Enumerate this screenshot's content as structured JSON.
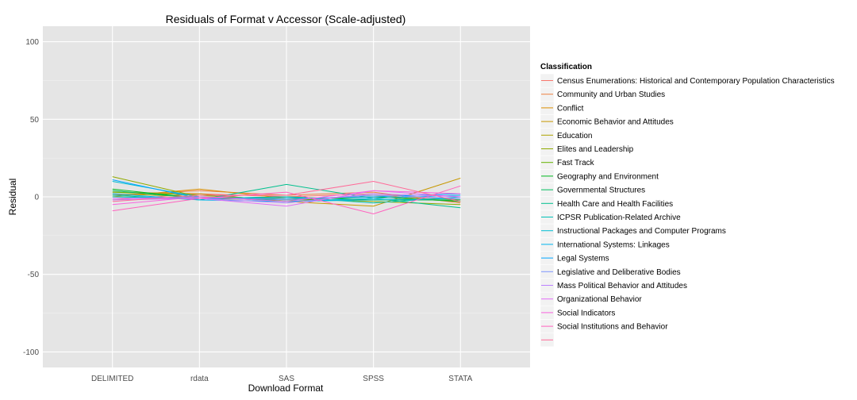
{
  "chart_data": {
    "type": "line",
    "title": "Residuals of Format v Accessor (Scale-adjusted)",
    "xlabel": "Download Format",
    "ylabel": "Residual",
    "categories": [
      "DELIMITED",
      "rdata",
      "SAS",
      "SPSS",
      "STATA"
    ],
    "ylim": [
      -110,
      110
    ],
    "yticks": [
      100,
      50,
      0,
      -50,
      -100
    ],
    "grid": true,
    "legend_title": "Classification",
    "legend_position": "right",
    "series": [
      {
        "name": "Census Enumerations: Historical and Contemporary Population Characteristics",
        "color": "#F8766D",
        "values": [
          -2,
          2,
          0,
          2,
          -2
        ]
      },
      {
        "name": "Community and Urban Studies",
        "color": "#EE8042",
        "values": [
          1,
          4,
          1,
          3,
          -4
        ]
      },
      {
        "name": "Conflict",
        "color": "#DB8E00",
        "values": [
          0,
          5,
          -1,
          0,
          -3
        ]
      },
      {
        "name": "Economic Behavior and Attitudes",
        "color": "#C79800",
        "values": [
          3,
          2,
          -3,
          -6,
          12
        ]
      },
      {
        "name": "Education",
        "color": "#AEA200",
        "values": [
          2,
          0,
          -2,
          1,
          -3
        ]
      },
      {
        "name": "Elites and Leadership",
        "color": "#8FAA00",
        "values": [
          13,
          0,
          -1,
          -3,
          -5
        ]
      },
      {
        "name": "Fast Track",
        "color": "#64B200",
        "values": [
          3,
          1,
          -2,
          -2,
          -2
        ]
      },
      {
        "name": "Geography and Environment",
        "color": "#00B81F",
        "values": [
          5,
          -1,
          -2,
          0,
          -3
        ]
      },
      {
        "name": "Governmental Structures",
        "color": "#00BD5C",
        "values": [
          4,
          -1,
          0,
          -2,
          -2
        ]
      },
      {
        "name": "Health Care and Health Facilities",
        "color": "#00C08E",
        "values": [
          1,
          -2,
          8,
          -1,
          -7
        ]
      },
      {
        "name": "ICPSR Publication-Related Archive",
        "color": "#00C1B7",
        "values": [
          0,
          -1,
          0,
          -4,
          0
        ]
      },
      {
        "name": "Instructional Packages and Computer Programs",
        "color": "#00BDD4",
        "values": [
          10,
          0,
          -3,
          -2,
          -1
        ]
      },
      {
        "name": "International Systems: Linkages",
        "color": "#00B5EE",
        "values": [
          2,
          -2,
          -3,
          -1,
          1
        ]
      },
      {
        "name": "Legal Systems",
        "color": "#00A7FF",
        "values": [
          11,
          -1,
          -1,
          0,
          2
        ]
      },
      {
        "name": "Legislative and Deliberative Bodies",
        "color": "#7F96FF",
        "values": [
          -1,
          0,
          -2,
          1,
          -1
        ]
      },
      {
        "name": "Mass Political Behavior and Attitudes",
        "color": "#BC81FF",
        "values": [
          -2,
          -1,
          -4,
          2,
          0
        ]
      },
      {
        "name": "Organizational Behavior",
        "color": "#E26EF7",
        "values": [
          -1,
          -1,
          -6,
          4,
          0
        ]
      },
      {
        "name": "Social Indicators",
        "color": "#F863DF",
        "values": [
          -5,
          0,
          -3,
          4,
          2
        ]
      },
      {
        "name": "Social Institutions and Behavior",
        "color": "#FF62BF",
        "values": [
          -9,
          -1,
          3,
          -11,
          7
        ]
      },
      {
        "name": "",
        "color": "#FF6A98",
        "values": [
          -3,
          1,
          1,
          10,
          -3
        ]
      }
    ]
  }
}
